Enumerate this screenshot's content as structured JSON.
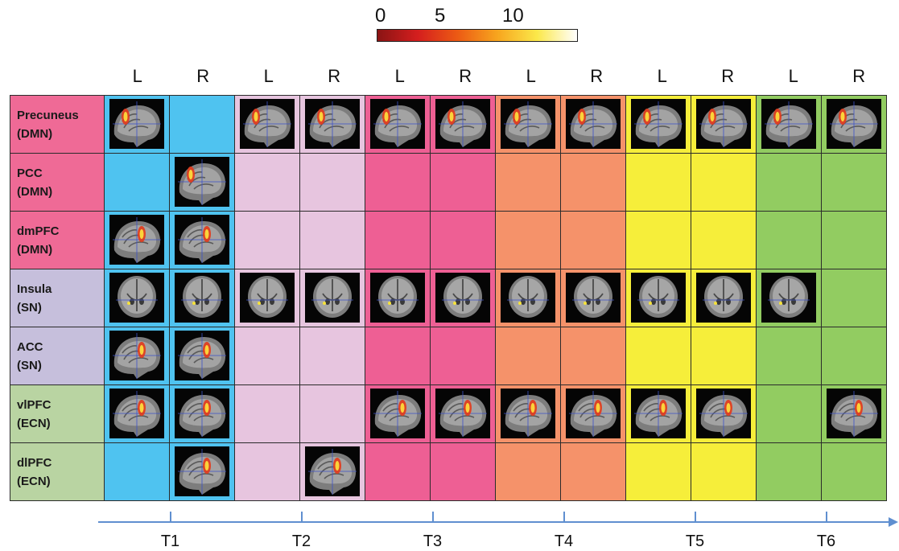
{
  "colorbar": {
    "ticks": [
      "0",
      "5",
      "10"
    ],
    "gradient": [
      "#8a1414",
      "#d41e1e",
      "#ec5a14",
      "#f7a51e",
      "#fbe84a",
      "#ffffff"
    ]
  },
  "columns": [
    "L",
    "R",
    "L",
    "R",
    "L",
    "R",
    "L",
    "R",
    "L",
    "R",
    "L",
    "R"
  ],
  "timepoints": [
    {
      "label": "T1",
      "color": "#4fc3f0"
    },
    {
      "label": "T2",
      "color": "#e7c5df"
    },
    {
      "label": "T3",
      "color": "#ee5f94"
    },
    {
      "label": "T4",
      "color": "#f5926a"
    },
    {
      "label": "T5",
      "color": "#f6ee3a"
    },
    {
      "label": "T6",
      "color": "#92cc61"
    }
  ],
  "rows": [
    {
      "name": "Precuneus",
      "network": "(DMN)",
      "color": "#ef6a96",
      "scans": [
        1,
        0,
        1,
        1,
        1,
        1,
        1,
        1,
        1,
        1,
        1,
        1
      ]
    },
    {
      "name": "PCC",
      "network": "(DMN)",
      "color": "#ef6a96",
      "scans": [
        0,
        1,
        0,
        0,
        0,
        0,
        0,
        0,
        0,
        0,
        0,
        0
      ]
    },
    {
      "name": "dmPFC",
      "network": "(DMN)",
      "color": "#ef6a96",
      "scans": [
        1,
        1,
        0,
        0,
        0,
        0,
        0,
        0,
        0,
        0,
        0,
        0
      ]
    },
    {
      "name": "Insula",
      "network": "(SN)",
      "color": "#c6bfdc",
      "scans": [
        1,
        1,
        1,
        1,
        1,
        1,
        1,
        1,
        1,
        1,
        1,
        0
      ]
    },
    {
      "name": "ACC",
      "network": "(SN)",
      "color": "#c6bfdc",
      "scans": [
        1,
        1,
        0,
        0,
        0,
        0,
        0,
        0,
        0,
        0,
        0,
        0
      ]
    },
    {
      "name": "vlPFC",
      "network": "(ECN)",
      "color": "#b9d4a2",
      "scans": [
        1,
        1,
        0,
        0,
        1,
        1,
        1,
        1,
        1,
        1,
        0,
        1
      ]
    },
    {
      "name": "dlPFC",
      "network": "(ECN)",
      "color": "#b9d4a2",
      "scans": [
        0,
        1,
        0,
        1,
        0,
        0,
        0,
        0,
        0,
        0,
        0,
        0
      ]
    }
  ],
  "scan_icons": [
    "brain-sagittal-icon",
    "brain-coronal-icon"
  ],
  "axis_color": "#5f8fd0"
}
